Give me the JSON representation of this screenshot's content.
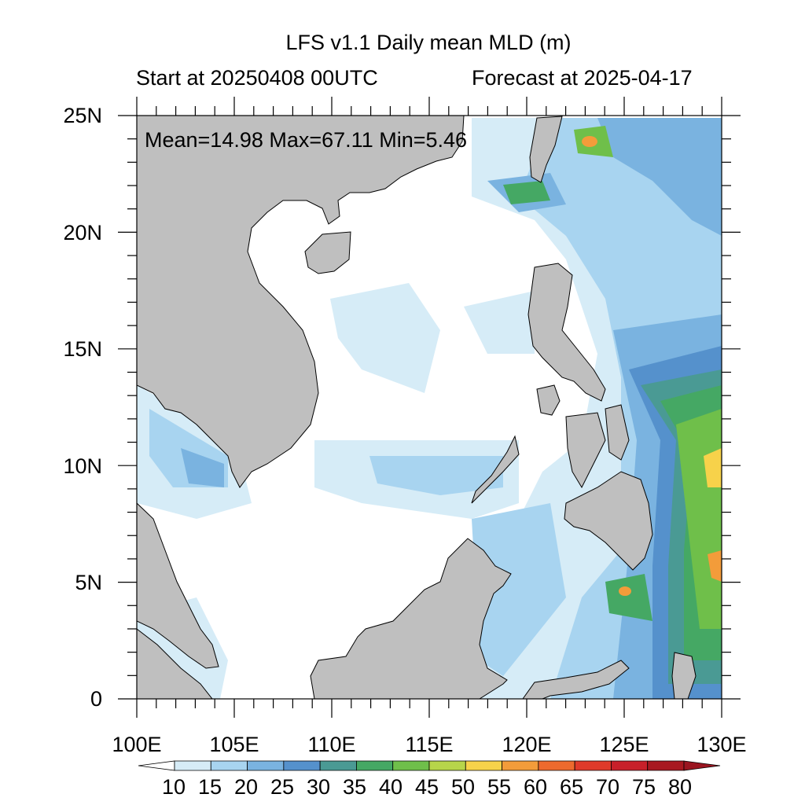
{
  "title": "LFS v1.1 Daily mean MLD (m)",
  "left_subtitle": "Start at 20250408 00UTC",
  "right_subtitle": "Forecast at 2025-04-17",
  "stats": {
    "mean": "14.98",
    "max": "67.11",
    "min": "5.46",
    "text": "Mean=14.98  Max=67.11  Min=5.46"
  },
  "map": {
    "region": "South China Sea / Western Pacific",
    "lon_range": [
      100,
      130
    ],
    "lat_range": [
      0,
      25
    ],
    "land_color": "#bfbfbf"
  },
  "x_ticks": [
    "100E",
    "105E",
    "110E",
    "115E",
    "120E",
    "125E",
    "130E"
  ],
  "y_ticks": [
    "25N",
    "20N",
    "15N",
    "10N",
    "5N",
    "0"
  ],
  "colorbar": {
    "labels": [
      "10",
      "15",
      "20",
      "25",
      "30",
      "35",
      "40",
      "45",
      "50",
      "55",
      "60",
      "65",
      "70",
      "75",
      "80"
    ],
    "colors": [
      "#ffffff",
      "#d6ecf7",
      "#a8d4f0",
      "#7ab3e0",
      "#5591cc",
      "#4a9a94",
      "#45a864",
      "#6fbf4a",
      "#b7d54a",
      "#f7d24a",
      "#f39c3a",
      "#ed6a2e",
      "#df3a2a",
      "#c8202a",
      "#a81820",
      "#9a1520"
    ]
  }
}
